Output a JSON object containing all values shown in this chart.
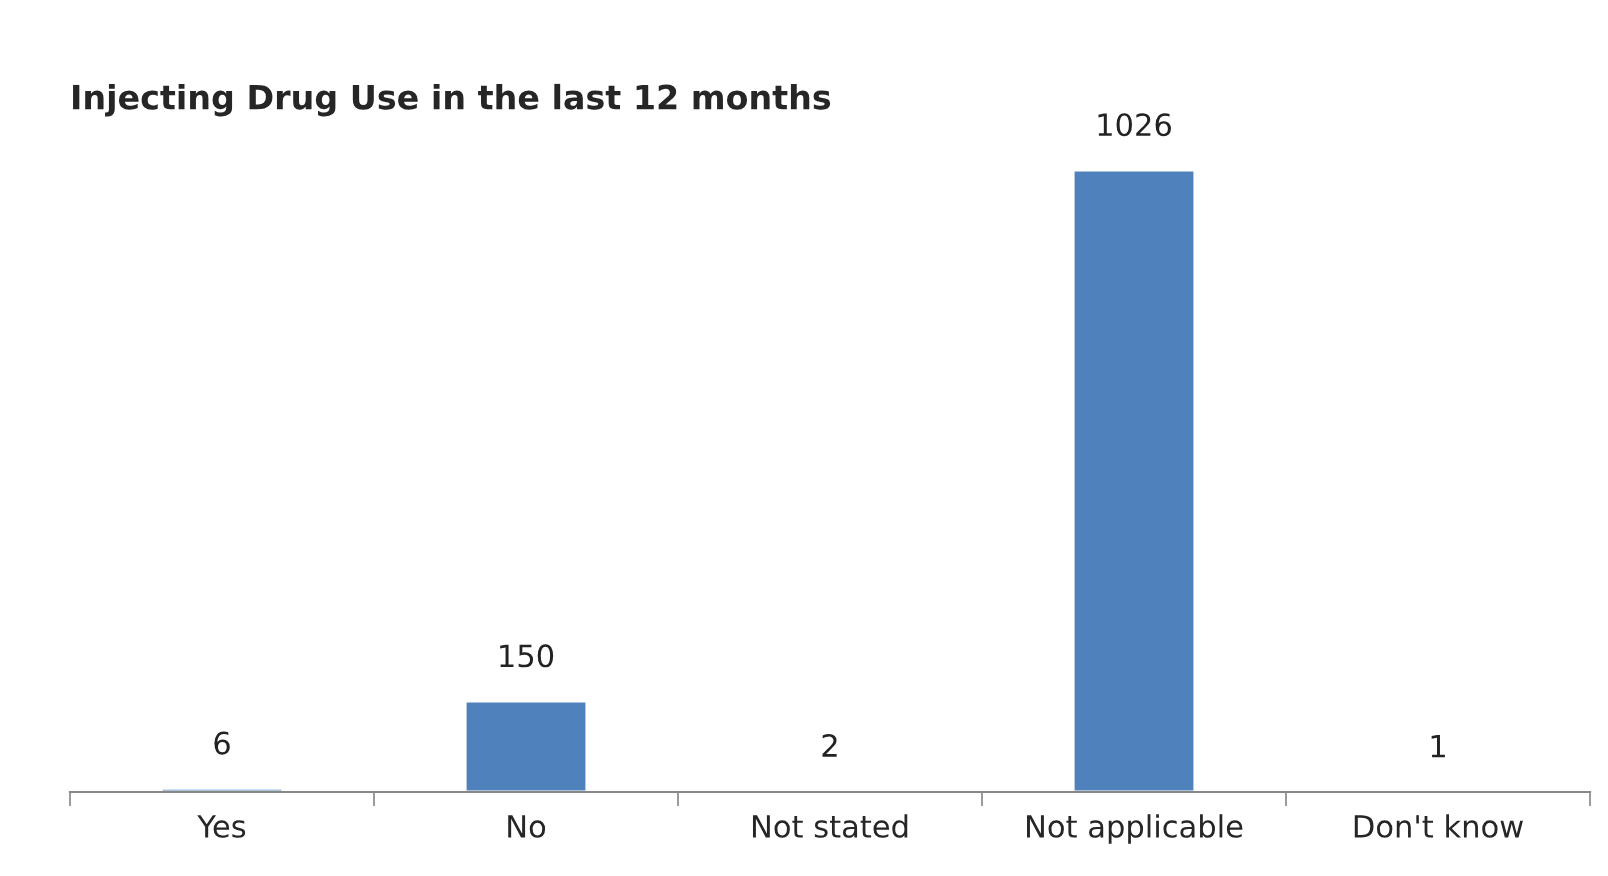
{
  "chart_data": {
    "type": "bar",
    "title": "Injecting Drug Use in the last 12 months",
    "categories": [
      "Yes",
      "No",
      "Not stated",
      "Not applicable",
      "Don't know"
    ],
    "values": [
      6,
      150,
      2,
      1026,
      1
    ],
    "color": "#4f81bd",
    "data_labels": true,
    "grid": false,
    "legend": false
  }
}
